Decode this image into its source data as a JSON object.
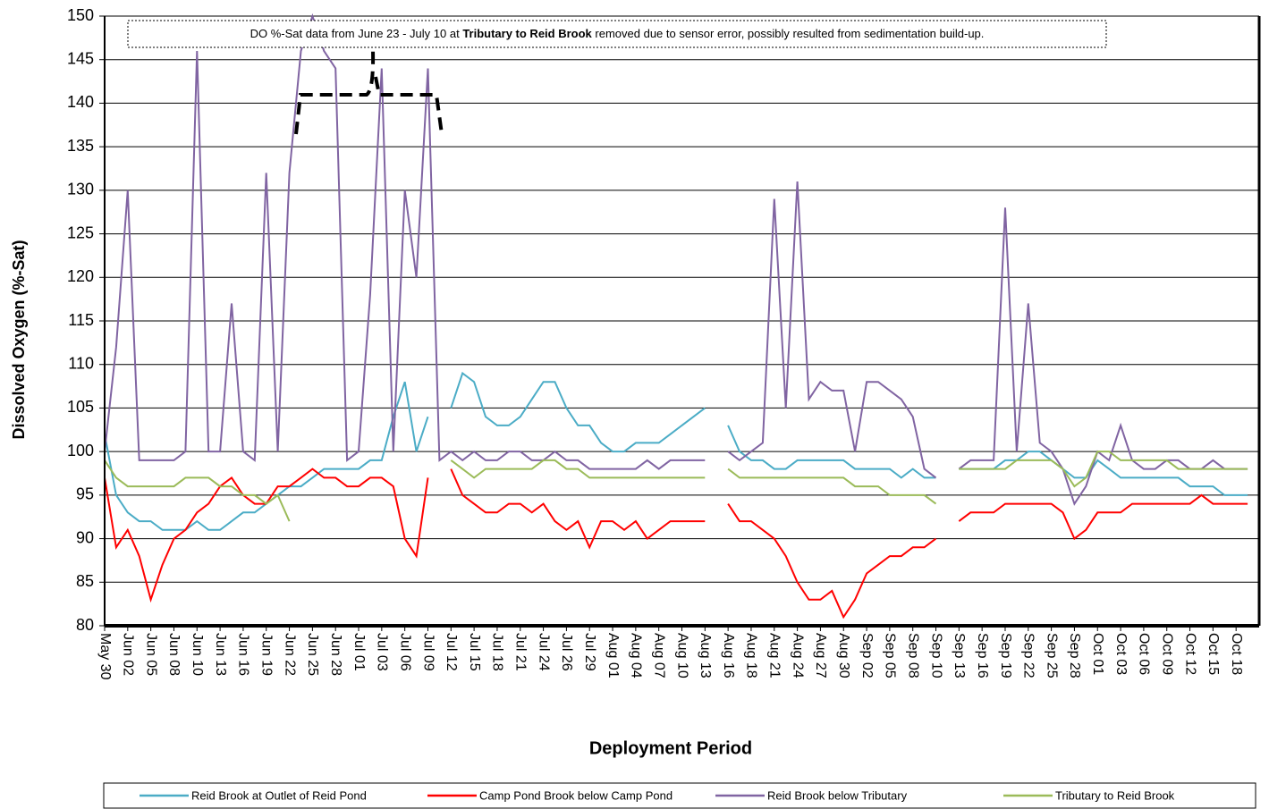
{
  "chart_data": {
    "type": "line",
    "y_label": "Dissolved Oxygen (%-Sat)",
    "x_label": "Deployment Period",
    "annotation": {
      "text_before": "DO %-Sat data from June 23 - July 10 at ",
      "text_bold": "Tributary to Reid Brook",
      "text_after": " removed due to sensor error, possibly resulted from sedimentation build-up."
    },
    "categories": [
      "May 30",
      null,
      "Jun 02",
      null,
      "Jun 05",
      null,
      "Jun 08",
      null,
      "Jun 10",
      null,
      "Jun 13",
      null,
      "Jun 16",
      null,
      "Jun 19",
      null,
      "Jun 22",
      null,
      "Jun 25",
      null,
      "Jun 28",
      null,
      "Jul 01",
      null,
      "Jul 03",
      null,
      "Jul 06",
      null,
      "Jul 09",
      null,
      "Jul 12",
      null,
      "Jul 15",
      null,
      "Jul 18",
      null,
      "Jul 21",
      null,
      "Jul 24",
      null,
      "Jul 26",
      null,
      "Jul 29",
      null,
      "Aug 01",
      null,
      "Aug 04",
      null,
      "Aug 07",
      null,
      "Aug 10",
      null,
      "Aug 13",
      null,
      "Aug 16",
      null,
      "Aug 18",
      null,
      "Aug 21",
      null,
      "Aug 24",
      null,
      "Aug 27",
      null,
      "Aug 30",
      null,
      "Sep 02",
      null,
      "Sep 05",
      null,
      "Sep 08",
      null,
      "Sep 10",
      null,
      "Sep 13",
      null,
      "Sep 16",
      null,
      "Sep 19",
      null,
      "Sep 22",
      null,
      "Sep 25",
      null,
      "Sep 28",
      null,
      "Oct 01",
      null,
      "Oct 03",
      null,
      "Oct 06",
      null,
      "Oct 09",
      null,
      "Oct 12",
      null,
      "Oct 15",
      null,
      "Oct 18",
      null
    ],
    "ylim": [
      80,
      150
    ],
    "yticks": [
      80,
      85,
      90,
      95,
      100,
      105,
      110,
      115,
      120,
      125,
      130,
      135,
      140,
      145,
      150
    ],
    "grid": true,
    "legend": "bottom",
    "series": [
      {
        "name": "Reid Brook at Outlet of Reid Pond",
        "color": "#4bacc6",
        "values": [
          102,
          95,
          93,
          92,
          92,
          91,
          91,
          91,
          92,
          91,
          91,
          92,
          93,
          93,
          94,
          95,
          96,
          96,
          97,
          98,
          98,
          98,
          98,
          99,
          99,
          104,
          108,
          100,
          104,
          null,
          105,
          109,
          108,
          104,
          103,
          103,
          104,
          106,
          108,
          108,
          105,
          103,
          103,
          101,
          100,
          100,
          101,
          101,
          101,
          102,
          103,
          104,
          105,
          null,
          103,
          100,
          99,
          99,
          98,
          98,
          99,
          99,
          99,
          99,
          99,
          98,
          98,
          98,
          98,
          97,
          98,
          97,
          97,
          null,
          98,
          98,
          98,
          98,
          99,
          99,
          100,
          100,
          99,
          98,
          97,
          97,
          99,
          98,
          97,
          97,
          97,
          97,
          97,
          97,
          96,
          96,
          96,
          95,
          95,
          95
        ]
      },
      {
        "name": "Camp Pond Brook below Camp Pond",
        "color": "#ff0000",
        "values": [
          97,
          89,
          91,
          88,
          83,
          87,
          90,
          91,
          93,
          94,
          96,
          97,
          95,
          94,
          94,
          96,
          96,
          97,
          98,
          97,
          97,
          96,
          96,
          97,
          97,
          96,
          90,
          88,
          97,
          null,
          98,
          95,
          94,
          93,
          93,
          94,
          94,
          93,
          94,
          92,
          91,
          92,
          89,
          92,
          92,
          91,
          92,
          90,
          91,
          92,
          92,
          92,
          92,
          null,
          94,
          92,
          92,
          91,
          90,
          88,
          85,
          83,
          83,
          84,
          81,
          83,
          86,
          87,
          88,
          88,
          89,
          89,
          90,
          null,
          92,
          93,
          93,
          93,
          94,
          94,
          94,
          94,
          94,
          93,
          90,
          91,
          93,
          93,
          93,
          94,
          94,
          94,
          94,
          94,
          94,
          95,
          94,
          94,
          94,
          94
        ]
      },
      {
        "name": "Reid Brook below Tributary",
        "color": "#8064a2",
        "values": [
          100,
          112,
          130,
          99,
          99,
          99,
          99,
          100,
          146,
          100,
          100,
          117,
          100,
          99,
          132,
          100,
          132,
          146,
          150,
          146,
          144,
          99,
          100,
          118,
          144,
          100,
          130,
          120,
          144,
          99,
          100,
          99,
          100,
          99,
          99,
          100,
          100,
          99,
          99,
          100,
          99,
          99,
          98,
          98,
          98,
          98,
          98,
          99,
          98,
          99,
          99,
          99,
          99,
          null,
          100,
          99,
          100,
          101,
          129,
          105,
          131,
          106,
          108,
          107,
          107,
          100,
          108,
          108,
          107,
          106,
          104,
          98,
          97,
          null,
          98,
          99,
          99,
          99,
          128,
          100,
          117,
          101,
          100,
          98,
          94,
          96,
          100,
          99,
          103,
          99,
          98,
          98,
          99,
          99,
          98,
          98,
          99,
          98,
          98,
          98
        ]
      },
      {
        "name": "Tributary to Reid Brook",
        "color": "#9bbb59",
        "values": [
          99,
          97,
          96,
          96,
          96,
          96,
          96,
          97,
          97,
          97,
          96,
          96,
          95,
          95,
          94,
          95,
          92,
          null,
          null,
          null,
          null,
          null,
          null,
          null,
          null,
          null,
          null,
          null,
          null,
          null,
          99,
          98,
          97,
          98,
          98,
          98,
          98,
          98,
          99,
          99,
          98,
          98,
          97,
          97,
          97,
          97,
          97,
          97,
          97,
          97,
          97,
          97,
          97,
          null,
          98,
          97,
          97,
          97,
          97,
          97,
          97,
          97,
          97,
          97,
          97,
          96,
          96,
          96,
          95,
          95,
          95,
          95,
          94,
          null,
          98,
          98,
          98,
          98,
          98,
          99,
          99,
          99,
          99,
          98,
          96,
          97,
          100,
          100,
          99,
          99,
          99,
          99,
          99,
          98,
          98,
          98,
          98,
          98,
          98,
          98
        ]
      }
    ]
  }
}
